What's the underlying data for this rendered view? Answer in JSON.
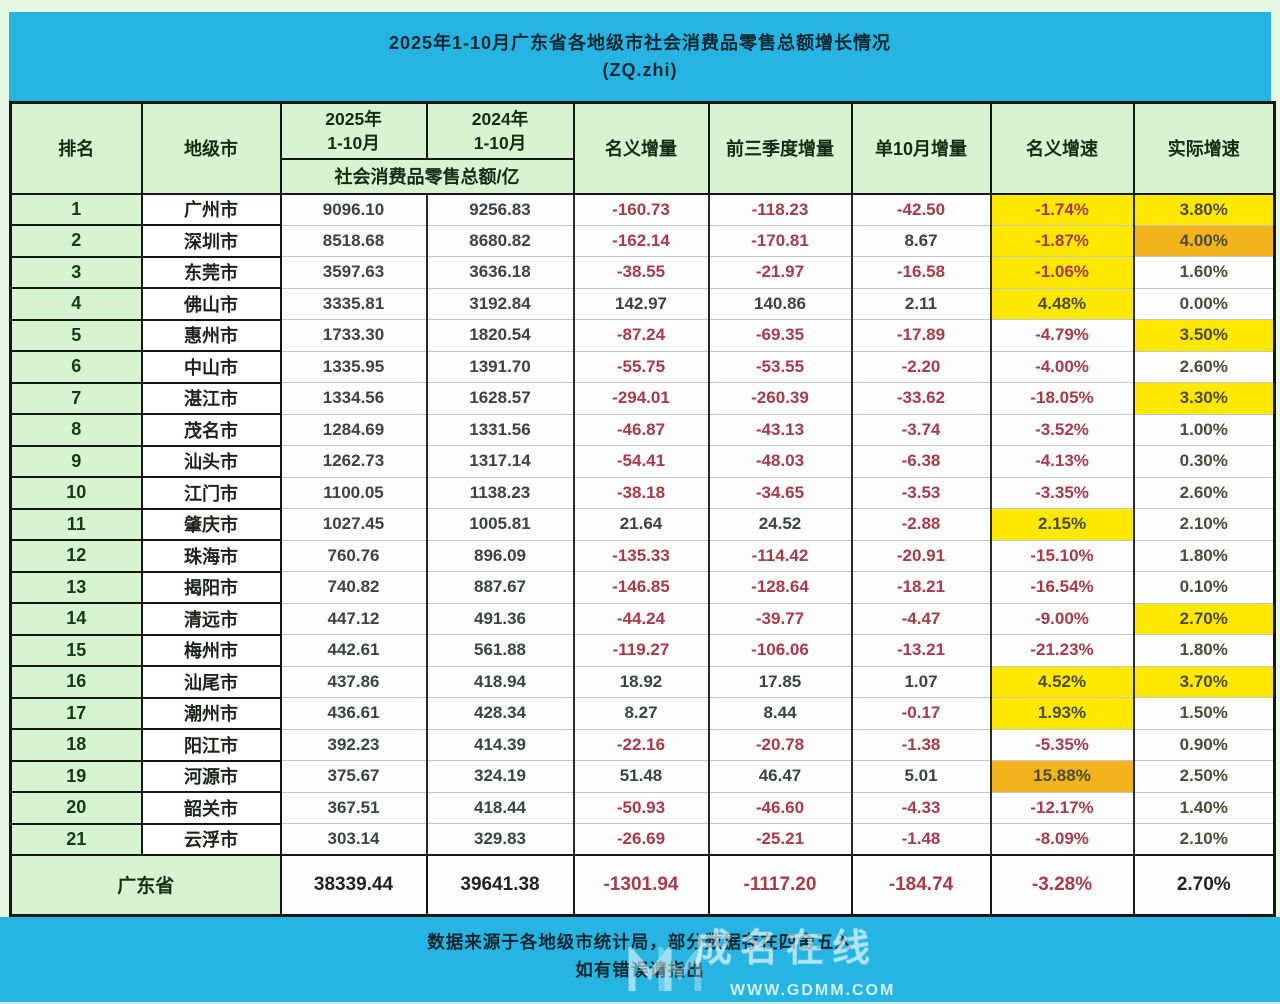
{
  "page": {
    "title_line1": "2025年1-10月广东省各地级市社会消费品零售总额增长情况",
    "title_line2": "(ZQ.zhi)"
  },
  "colors": {
    "band_cyan": "#26b5e2",
    "header_green": "#d6f4d0",
    "highlight_yellow": "#ffe800",
    "highlight_orange": "#f2b31c",
    "negative_red": "#a93a49",
    "page_background": "#e7f8e2"
  },
  "chart_data": {
    "type": "table",
    "title": "2025年1-10月广东省各地级市社会消费品零售总额增长情况",
    "subtitle": "(ZQ.zhi)",
    "columns": [
      "排名",
      "地级市",
      "2025年1-10月",
      "2024年1-10月",
      "名义增量",
      "前三季度增量",
      "单10月增量",
      "名义增速",
      "实际增速"
    ],
    "header": {
      "rank": "排名",
      "city": "地级市",
      "y2025_line1": "2025年",
      "y2025_line2": "1-10月",
      "y2024_line1": "2024年",
      "y2024_line2": "1-10月",
      "unit_subheader": "社会消费品零售总额/亿",
      "nominal_delta": "名义增量",
      "q3_delta": "前三季度增量",
      "oct_delta": "单10月增量",
      "nominal_rate": "名义增速",
      "real_rate": "实际增速"
    },
    "rows": [
      {
        "rank": "1",
        "city": "广州市",
        "y2025": "9096.10",
        "y2024": "9256.83",
        "nominal_delta": "-160.73",
        "q3_delta": "-118.23",
        "oct_delta": "-42.50",
        "nominal_rate": "-1.74%",
        "real_rate": "3.80%",
        "nominal_rate_bg": "yellow",
        "real_rate_bg": "yellow"
      },
      {
        "rank": "2",
        "city": "深圳市",
        "y2025": "8518.68",
        "y2024": "8680.82",
        "nominal_delta": "-162.14",
        "q3_delta": "-170.81",
        "oct_delta": "8.67",
        "nominal_rate": "-1.87%",
        "real_rate": "4.00%",
        "nominal_rate_bg": "yellow",
        "real_rate_bg": "orange"
      },
      {
        "rank": "3",
        "city": "东莞市",
        "y2025": "3597.63",
        "y2024": "3636.18",
        "nominal_delta": "-38.55",
        "q3_delta": "-21.97",
        "oct_delta": "-16.58",
        "nominal_rate": "-1.06%",
        "real_rate": "1.60%",
        "nominal_rate_bg": "yellow",
        "real_rate_bg": ""
      },
      {
        "rank": "4",
        "city": "佛山市",
        "y2025": "3335.81",
        "y2024": "3192.84",
        "nominal_delta": "142.97",
        "q3_delta": "140.86",
        "oct_delta": "2.11",
        "nominal_rate": "4.48%",
        "real_rate": "0.00%",
        "nominal_rate_bg": "yellow",
        "real_rate_bg": ""
      },
      {
        "rank": "5",
        "city": "惠州市",
        "y2025": "1733.30",
        "y2024": "1820.54",
        "nominal_delta": "-87.24",
        "q3_delta": "-69.35",
        "oct_delta": "-17.89",
        "nominal_rate": "-4.79%",
        "real_rate": "3.50%",
        "nominal_rate_bg": "",
        "real_rate_bg": "yellow"
      },
      {
        "rank": "6",
        "city": "中山市",
        "y2025": "1335.95",
        "y2024": "1391.70",
        "nominal_delta": "-55.75",
        "q3_delta": "-53.55",
        "oct_delta": "-2.20",
        "nominal_rate": "-4.00%",
        "real_rate": "2.60%",
        "nominal_rate_bg": "",
        "real_rate_bg": ""
      },
      {
        "rank": "7",
        "city": "湛江市",
        "y2025": "1334.56",
        "y2024": "1628.57",
        "nominal_delta": "-294.01",
        "q3_delta": "-260.39",
        "oct_delta": "-33.62",
        "nominal_rate": "-18.05%",
        "real_rate": "3.30%",
        "nominal_rate_bg": "",
        "real_rate_bg": "yellow"
      },
      {
        "rank": "8",
        "city": "茂名市",
        "y2025": "1284.69",
        "y2024": "1331.56",
        "nominal_delta": "-46.87",
        "q3_delta": "-43.13",
        "oct_delta": "-3.74",
        "nominal_rate": "-3.52%",
        "real_rate": "1.00%",
        "nominal_rate_bg": "",
        "real_rate_bg": ""
      },
      {
        "rank": "9",
        "city": "汕头市",
        "y2025": "1262.73",
        "y2024": "1317.14",
        "nominal_delta": "-54.41",
        "q3_delta": "-48.03",
        "oct_delta": "-6.38",
        "nominal_rate": "-4.13%",
        "real_rate": "0.30%",
        "nominal_rate_bg": "",
        "real_rate_bg": ""
      },
      {
        "rank": "10",
        "city": "江门市",
        "y2025": "1100.05",
        "y2024": "1138.23",
        "nominal_delta": "-38.18",
        "q3_delta": "-34.65",
        "oct_delta": "-3.53",
        "nominal_rate": "-3.35%",
        "real_rate": "2.60%",
        "nominal_rate_bg": "",
        "real_rate_bg": ""
      },
      {
        "rank": "11",
        "city": "肇庆市",
        "y2025": "1027.45",
        "y2024": "1005.81",
        "nominal_delta": "21.64",
        "q3_delta": "24.52",
        "oct_delta": "-2.88",
        "nominal_rate": "2.15%",
        "real_rate": "2.10%",
        "nominal_rate_bg": "yellow",
        "real_rate_bg": ""
      },
      {
        "rank": "12",
        "city": "珠海市",
        "y2025": "760.76",
        "y2024": "896.09",
        "nominal_delta": "-135.33",
        "q3_delta": "-114.42",
        "oct_delta": "-20.91",
        "nominal_rate": "-15.10%",
        "real_rate": "1.80%",
        "nominal_rate_bg": "",
        "real_rate_bg": ""
      },
      {
        "rank": "13",
        "city": "揭阳市",
        "y2025": "740.82",
        "y2024": "887.67",
        "nominal_delta": "-146.85",
        "q3_delta": "-128.64",
        "oct_delta": "-18.21",
        "nominal_rate": "-16.54%",
        "real_rate": "0.10%",
        "nominal_rate_bg": "",
        "real_rate_bg": ""
      },
      {
        "rank": "14",
        "city": "清远市",
        "y2025": "447.12",
        "y2024": "491.36",
        "nominal_delta": "-44.24",
        "q3_delta": "-39.77",
        "oct_delta": "-4.47",
        "nominal_rate": "-9.00%",
        "real_rate": "2.70%",
        "nominal_rate_bg": "",
        "real_rate_bg": "yellow"
      },
      {
        "rank": "15",
        "city": "梅州市",
        "y2025": "442.61",
        "y2024": "561.88",
        "nominal_delta": "-119.27",
        "q3_delta": "-106.06",
        "oct_delta": "-13.21",
        "nominal_rate": "-21.23%",
        "real_rate": "1.80%",
        "nominal_rate_bg": "",
        "real_rate_bg": ""
      },
      {
        "rank": "16",
        "city": "汕尾市",
        "y2025": "437.86",
        "y2024": "418.94",
        "nominal_delta": "18.92",
        "q3_delta": "17.85",
        "oct_delta": "1.07",
        "nominal_rate": "4.52%",
        "real_rate": "3.70%",
        "nominal_rate_bg": "yellow",
        "real_rate_bg": "yellow"
      },
      {
        "rank": "17",
        "city": "潮州市",
        "y2025": "436.61",
        "y2024": "428.34",
        "nominal_delta": "8.27",
        "q3_delta": "8.44",
        "oct_delta": "-0.17",
        "nominal_rate": "1.93%",
        "real_rate": "1.50%",
        "nominal_rate_bg": "yellow",
        "real_rate_bg": ""
      },
      {
        "rank": "18",
        "city": "阳江市",
        "y2025": "392.23",
        "y2024": "414.39",
        "nominal_delta": "-22.16",
        "q3_delta": "-20.78",
        "oct_delta": "-1.38",
        "nominal_rate": "-5.35%",
        "real_rate": "0.90%",
        "nominal_rate_bg": "",
        "real_rate_bg": ""
      },
      {
        "rank": "19",
        "city": "河源市",
        "y2025": "375.67",
        "y2024": "324.19",
        "nominal_delta": "51.48",
        "q3_delta": "46.47",
        "oct_delta": "5.01",
        "nominal_rate": "15.88%",
        "real_rate": "2.50%",
        "nominal_rate_bg": "orange",
        "real_rate_bg": ""
      },
      {
        "rank": "20",
        "city": "韶关市",
        "y2025": "367.51",
        "y2024": "418.44",
        "nominal_delta": "-50.93",
        "q3_delta": "-46.60",
        "oct_delta": "-4.33",
        "nominal_rate": "-12.17%",
        "real_rate": "1.40%",
        "nominal_rate_bg": "",
        "real_rate_bg": ""
      },
      {
        "rank": "21",
        "city": "云浮市",
        "y2025": "303.14",
        "y2024": "329.83",
        "nominal_delta": "-26.69",
        "q3_delta": "-25.21",
        "oct_delta": "-1.48",
        "nominal_rate": "-8.09%",
        "real_rate": "2.10%",
        "nominal_rate_bg": "",
        "real_rate_bg": ""
      }
    ],
    "total": {
      "label": "广东省",
      "y2025": "38339.44",
      "y2024": "39641.38",
      "nominal_delta": "-1301.94",
      "q3_delta": "-1117.20",
      "oct_delta": "-184.74",
      "nominal_rate": "-3.28%",
      "real_rate": "2.70%"
    }
  },
  "footer": {
    "line1": "数据来源于各地级市统计局，部分数据存在四舍五入",
    "line2": "如有错误请指出"
  },
  "watermark": {
    "cn_text": "成名在线",
    "url": "WWW.GDMM.COM"
  }
}
